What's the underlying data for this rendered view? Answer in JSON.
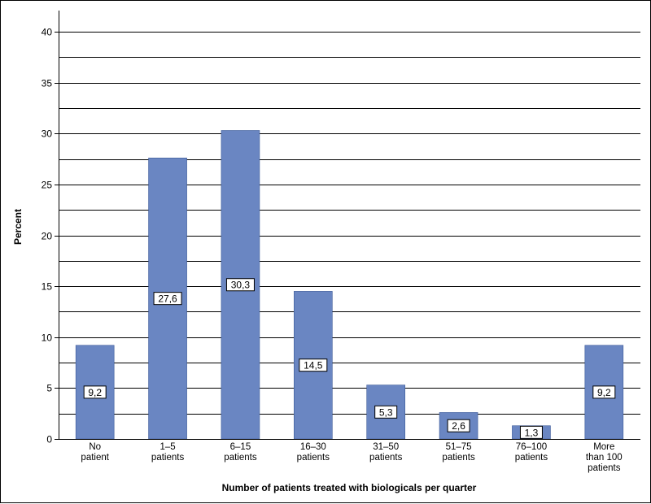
{
  "chart_data": {
    "type": "bar",
    "categories": [
      [
        "No",
        "patient"
      ],
      [
        "1–5",
        "patients"
      ],
      [
        "6–15",
        "patients"
      ],
      [
        "16–30",
        "patients"
      ],
      [
        "31–50",
        "patients"
      ],
      [
        "51–75",
        "patients"
      ],
      [
        "76–100",
        "patients"
      ],
      [
        "More",
        "than 100",
        "patients"
      ]
    ],
    "values": [
      9.2,
      27.6,
      30.3,
      14.5,
      5.3,
      2.6,
      1.3,
      9.2
    ],
    "data_labels": [
      "9,2",
      "27,6",
      "30,3",
      "14,5",
      "5,3",
      "2,6",
      "1,3",
      "9,2"
    ],
    "title": "",
    "xlabel": "Number of patients treated with biologicals per quarter",
    "ylabel": "Percent",
    "ylim": [
      0,
      40
    ],
    "yticks": [
      0,
      5,
      10,
      15,
      20,
      25,
      30,
      35,
      40
    ],
    "ytick_labels": [
      "0",
      "5",
      "10",
      "15",
      "20",
      "25",
      "30",
      "35",
      "40"
    ],
    "grid": true,
    "minor_grid_step": 2.5,
    "legend": "none",
    "bar_color": "#6a86c2",
    "bar_edge_color": "#3b5998"
  }
}
